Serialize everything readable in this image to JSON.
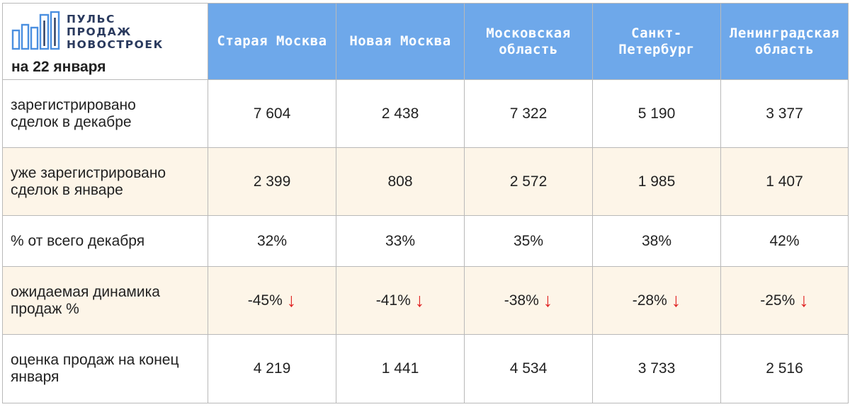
{
  "brand": {
    "logo_lines": [
      "ПУЛЬС",
      "ПРОДАЖ",
      "НОВОСТРОЕК"
    ],
    "logo_color": "#2a3a5e",
    "logo_accent": "#4a8fe0",
    "date_label": "на 22 января"
  },
  "colors": {
    "header_bg": "#6ea8ea",
    "alt_row_bg": "#fdf5e8",
    "arrow": "#e02222"
  },
  "regions": [
    "Старая Москва",
    "Новая Москва",
    "Московская область",
    "Санкт-Петербург",
    "Ленинградская область"
  ],
  "region_lines": [
    [
      "Старая Москва"
    ],
    [
      "Новая Москва"
    ],
    [
      "Московская",
      "область"
    ],
    [
      "Санкт-",
      "Петербург"
    ],
    [
      "Ленинградская",
      "область"
    ]
  ],
  "rows": [
    {
      "label_lines": [
        "зарегистрировано",
        "сделок в декабре"
      ],
      "values": [
        "7 604",
        "2 438",
        "7 322",
        "5 190",
        "3 377"
      ],
      "alt": false,
      "arrows": false
    },
    {
      "label_lines": [
        "уже зарегистрировано",
        "сделок в январе"
      ],
      "values": [
        "2 399",
        "808",
        "2 572",
        "1 985",
        "1 407"
      ],
      "alt": true,
      "arrows": false
    },
    {
      "label_lines": [
        "% от всего декабря"
      ],
      "values": [
        "32%",
        "33%",
        "35%",
        "38%",
        "42%"
      ],
      "alt": false,
      "arrows": false
    },
    {
      "label_lines": [
        "ожидаемая динамика",
        "продаж %"
      ],
      "values": [
        "-45%",
        "-41%",
        "-38%",
        "-28%",
        "-25%"
      ],
      "alt": true,
      "arrows": true,
      "arrow_glyph": "↓",
      "arrow_icon": "arrow-down-icon"
    },
    {
      "label_lines": [
        "оценка продаж на конец",
        "января"
      ],
      "values": [
        "4 219",
        "1 441",
        "4 534",
        "3 733",
        "2 516"
      ],
      "alt": false,
      "arrows": false
    }
  ]
}
